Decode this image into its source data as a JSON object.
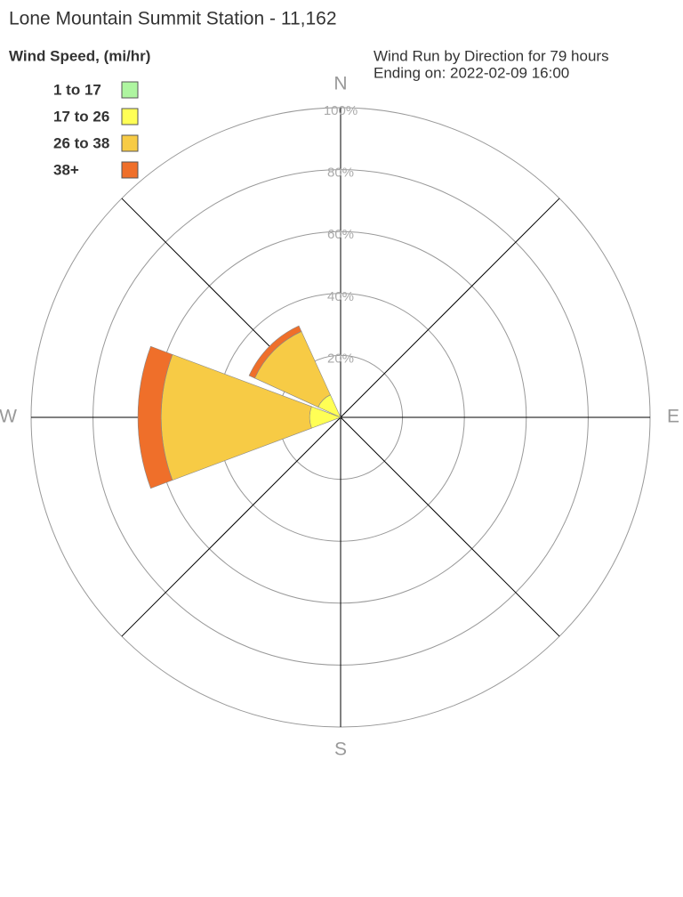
{
  "chart_data": {
    "type": "windrose",
    "title": "Lone Mountain Summit Station - 11,162",
    "legend_title": "Wind Speed, (mi/hr)",
    "subtitle": [
      "Wind Run by Direction for 79 hours",
      "Ending on: 2022-02-09 16:00"
    ],
    "categories": [
      "N",
      null,
      "E",
      null,
      "S",
      null,
      "W",
      null
    ],
    "series": [
      {
        "name": "1 to 17",
        "color": "#aef5a0",
        "values": [
          0,
          0,
          0,
          0,
          0,
          0,
          0,
          0
        ]
      },
      {
        "name": "17 to 26",
        "color": "#ffff55",
        "values": [
          0,
          0,
          0,
          0,
          0,
          0,
          10,
          8
        ]
      },
      {
        "name": "26 to 38",
        "color": "#f7cb45",
        "values": [
          0,
          0,
          0,
          0,
          0,
          0,
          48,
          22.5
        ]
      },
      {
        "name": "38+",
        "color": "#ef6f2a",
        "values": [
          0,
          0,
          0,
          0,
          0,
          0,
          7.5,
          2
        ]
      }
    ],
    "rlim": [
      0,
      100
    ],
    "rticks": [
      {
        "value": 20,
        "label": "20%"
      },
      {
        "value": 40,
        "label": "40%"
      },
      {
        "value": 60,
        "label": "60%"
      },
      {
        "value": 80,
        "label": "80%"
      },
      {
        "value": 100,
        "label": "100%"
      }
    ]
  }
}
